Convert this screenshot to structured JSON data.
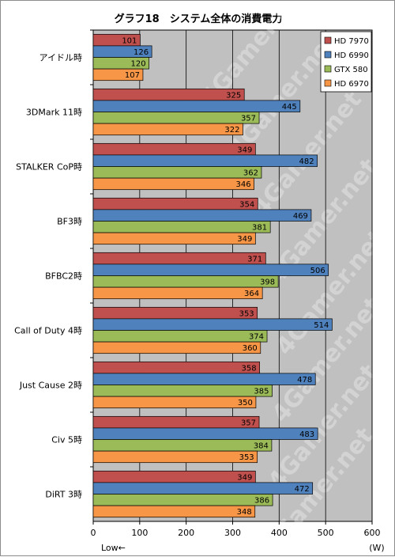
{
  "chart_data": {
    "type": "bar",
    "orientation": "horizontal",
    "title": "グラフ18　システム全体の消費電力",
    "categories": [
      "アイドル時",
      "3DMark 11時",
      "STALKER  CoP時",
      "BF3時",
      "BFBC2時",
      "Call of Duty 4時",
      "Just Cause 2時",
      "Civ 5時",
      "DiRT 3時"
    ],
    "series": [
      {
        "name": "HD 7970",
        "color": "#c0504d",
        "values": [
          101,
          325,
          349,
          354,
          371,
          353,
          358,
          357,
          349
        ]
      },
      {
        "name": "HD 6990",
        "color": "#4f81bd",
        "values": [
          126,
          445,
          482,
          469,
          506,
          514,
          478,
          483,
          472
        ]
      },
      {
        "name": "GTX 580",
        "color": "#9bbb59",
        "values": [
          120,
          357,
          362,
          381,
          398,
          374,
          385,
          384,
          386
        ]
      },
      {
        "name": "HD 6970",
        "color": "#f79646",
        "values": [
          107,
          322,
          346,
          349,
          364,
          360,
          350,
          353,
          348
        ]
      }
    ],
    "xlim": [
      0,
      600
    ],
    "xticks": [
      0,
      100,
      200,
      300,
      400,
      500,
      600
    ],
    "xunit": "(W)",
    "xnote": "Low←",
    "grid": true,
    "legend_position": "top-right",
    "watermark": "4Gamer.net",
    "plot_bg": "#c0c0c0"
  }
}
